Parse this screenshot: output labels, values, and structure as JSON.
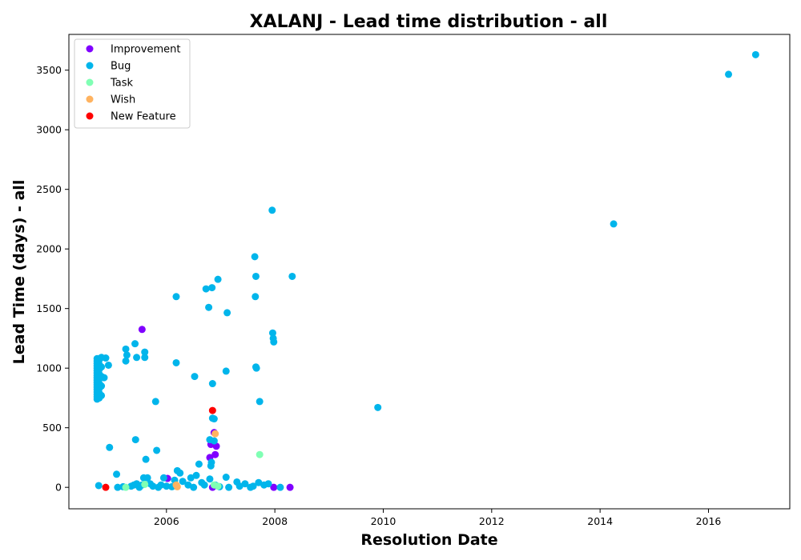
{
  "chart_data": {
    "type": "scatter",
    "title": "XALANJ - Lead time distribution - all",
    "xlabel": "Resolution Date",
    "ylabel": "Lead Time (days) - all",
    "xlim": [
      2004.2,
      2017.5
    ],
    "ylim": [
      -180,
      3800
    ],
    "x_ticks": [
      2006,
      2008,
      2010,
      2012,
      2014,
      2016
    ],
    "y_ticks": [
      0,
      500,
      1000,
      1500,
      2000,
      2500,
      3000,
      3500
    ],
    "grid": false,
    "legend_position": "top-left",
    "series": [
      {
        "name": "Improvement",
        "color": "#8000ff",
        "points": [
          [
            2005.55,
            1325
          ],
          [
            2006.02,
            75
          ],
          [
            2006.8,
            250
          ],
          [
            2006.82,
            360
          ],
          [
            2006.9,
            275
          ],
          [
            2006.92,
            345
          ],
          [
            2006.88,
            460
          ],
          [
            2007.98,
            0
          ],
          [
            2008.28,
            0
          ],
          [
            2006.85,
            0
          ]
        ]
      },
      {
        "name": "Bug",
        "color": "#00b5eb",
        "points": [
          [
            2004.72,
            740
          ],
          [
            2004.72,
            760
          ],
          [
            2004.72,
            780
          ],
          [
            2004.72,
            800
          ],
          [
            2004.72,
            820
          ],
          [
            2004.72,
            840
          ],
          [
            2004.72,
            860
          ],
          [
            2004.72,
            880
          ],
          [
            2004.72,
            900
          ],
          [
            2004.72,
            920
          ],
          [
            2004.72,
            940
          ],
          [
            2004.72,
            960
          ],
          [
            2004.72,
            980
          ],
          [
            2004.72,
            1000
          ],
          [
            2004.72,
            1020
          ],
          [
            2004.72,
            1040
          ],
          [
            2004.72,
            1060
          ],
          [
            2004.72,
            1080
          ],
          [
            2004.76,
            750
          ],
          [
            2004.76,
            790
          ],
          [
            2004.76,
            830
          ],
          [
            2004.76,
            870
          ],
          [
            2004.76,
            910
          ],
          [
            2004.76,
            950
          ],
          [
            2004.76,
            990
          ],
          [
            2004.76,
            1030
          ],
          [
            2004.76,
            1070
          ],
          [
            2004.8,
            770
          ],
          [
            2004.8,
            850
          ],
          [
            2004.8,
            930
          ],
          [
            2004.8,
            1010
          ],
          [
            2004.8,
            1090
          ],
          [
            2004.85,
            920
          ],
          [
            2004.88,
            1085
          ],
          [
            2004.93,
            1025
          ],
          [
            2004.95,
            335
          ],
          [
            2004.75,
            15
          ],
          [
            2005.08,
            110
          ],
          [
            2005.1,
            0
          ],
          [
            2005.2,
            5
          ],
          [
            2005.25,
            1060
          ],
          [
            2005.25,
            1160
          ],
          [
            2005.27,
            1110
          ],
          [
            2005.35,
            10
          ],
          [
            2005.4,
            20
          ],
          [
            2005.42,
            1205
          ],
          [
            2005.43,
            400
          ],
          [
            2005.45,
            1090
          ],
          [
            2005.45,
            30
          ],
          [
            2005.5,
            0
          ],
          [
            2005.55,
            20
          ],
          [
            2005.58,
            80
          ],
          [
            2005.6,
            1135
          ],
          [
            2005.6,
            1090
          ],
          [
            2005.62,
            235
          ],
          [
            2005.65,
            80
          ],
          [
            2005.7,
            30
          ],
          [
            2005.75,
            10
          ],
          [
            2005.8,
            720
          ],
          [
            2005.82,
            310
          ],
          [
            2005.85,
            0
          ],
          [
            2005.9,
            20
          ],
          [
            2005.95,
            80
          ],
          [
            2006.0,
            10
          ],
          [
            2006.1,
            5
          ],
          [
            2006.15,
            60
          ],
          [
            2006.18,
            1600
          ],
          [
            2006.18,
            1045
          ],
          [
            2006.2,
            140
          ],
          [
            2006.25,
            120
          ],
          [
            2006.3,
            50
          ],
          [
            2006.4,
            20
          ],
          [
            2006.45,
            80
          ],
          [
            2006.5,
            0
          ],
          [
            2006.52,
            930
          ],
          [
            2006.55,
            100
          ],
          [
            2006.6,
            195
          ],
          [
            2006.65,
            40
          ],
          [
            2006.7,
            20
          ],
          [
            2006.73,
            1665
          ],
          [
            2006.78,
            1510
          ],
          [
            2006.8,
            400
          ],
          [
            2006.82,
            180
          ],
          [
            2006.83,
            210
          ],
          [
            2006.84,
            1675
          ],
          [
            2006.85,
            870
          ],
          [
            2006.85,
            580
          ],
          [
            2006.88,
            575
          ],
          [
            2006.88,
            390
          ],
          [
            2006.8,
            70
          ],
          [
            2006.9,
            20
          ],
          [
            2006.95,
            1745
          ],
          [
            2006.98,
            5
          ],
          [
            2007.1,
            975
          ],
          [
            2007.12,
            1465
          ],
          [
            2007.1,
            85
          ],
          [
            2007.15,
            0
          ],
          [
            2007.3,
            45
          ],
          [
            2007.35,
            10
          ],
          [
            2007.45,
            30
          ],
          [
            2007.55,
            0
          ],
          [
            2007.6,
            10
          ],
          [
            2007.63,
            1935
          ],
          [
            2007.64,
            1600
          ],
          [
            2007.65,
            1770
          ],
          [
            2007.65,
            1010
          ],
          [
            2007.66,
            1000
          ],
          [
            2007.7,
            40
          ],
          [
            2007.72,
            720
          ],
          [
            2007.8,
            20
          ],
          [
            2007.88,
            30
          ],
          [
            2007.95,
            2325
          ],
          [
            2007.96,
            1295
          ],
          [
            2007.97,
            1250
          ],
          [
            2007.98,
            1220
          ],
          [
            2008.1,
            0
          ],
          [
            2008.32,
            1770
          ],
          [
            2009.9,
            670
          ],
          [
            2014.25,
            2210
          ],
          [
            2016.37,
            3465
          ],
          [
            2016.87,
            3630
          ]
        ]
      },
      {
        "name": "Task",
        "color": "#80ffb4",
        "points": [
          [
            2005.25,
            0
          ],
          [
            2005.6,
            25
          ],
          [
            2006.88,
            20
          ],
          [
            2006.95,
            10
          ],
          [
            2007.72,
            275
          ]
        ]
      },
      {
        "name": "Wish",
        "color": "#ffb360",
        "points": [
          [
            2006.18,
            20
          ],
          [
            2006.2,
            5
          ],
          [
            2006.9,
            450
          ]
        ]
      },
      {
        "name": "New Feature",
        "color": "#ff0000",
        "points": [
          [
            2004.88,
            0
          ],
          [
            2006.85,
            645
          ]
        ]
      }
    ]
  }
}
